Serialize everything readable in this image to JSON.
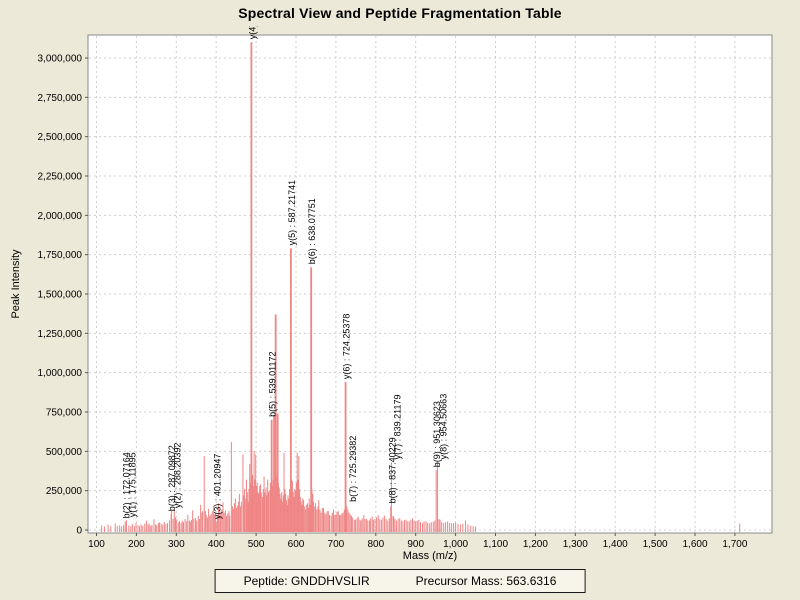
{
  "title": "Spectral View and Peptide Fragmentation Table",
  "footer": {
    "peptide": "Peptide: GNDDHVSLIR",
    "precursor": "Precursor Mass: 563.6316"
  },
  "colors": {
    "background": "#ece9d8",
    "plot_background": "#ffffff",
    "grid": "#cfcfcf",
    "frame": "#8a8a8a",
    "peak": "#ef8585",
    "text": "#000000"
  },
  "chart_data": {
    "type": "bar",
    "title": "Spectral View and Peptide Fragmentation Table",
    "xlabel": "Mass (m/z)",
    "ylabel": "Peak Intensity",
    "xlim": [
      80,
      1790
    ],
    "ylim": [
      0,
      3100000
    ],
    "grid": "dashed",
    "legend": "none",
    "x_ticks": [
      [
        100,
        "100"
      ],
      [
        200,
        "200"
      ],
      [
        300,
        "300"
      ],
      [
        400,
        "400"
      ],
      [
        500,
        "500"
      ],
      [
        600,
        "600"
      ],
      [
        700,
        "700"
      ],
      [
        800,
        "800"
      ],
      [
        900,
        "900"
      ],
      [
        1000,
        "1,000"
      ],
      [
        1100,
        "1,100"
      ],
      [
        1200,
        "1,200"
      ],
      [
        1300,
        "1,300"
      ],
      [
        1400,
        "1,400"
      ],
      [
        1500,
        "1,500"
      ],
      [
        1600,
        "1,600"
      ],
      [
        1700,
        "1,700"
      ]
    ],
    "y_ticks": [
      [
        0,
        "0"
      ],
      [
        250000,
        "250,000"
      ],
      [
        500000,
        "500,000"
      ],
      [
        750000,
        "750,000"
      ],
      [
        1000000,
        "1,000,000"
      ],
      [
        1250000,
        "1,250,000"
      ],
      [
        1500000,
        "1,500,000"
      ],
      [
        1750000,
        "1,750,000"
      ],
      [
        2000000,
        "2,000,000"
      ],
      [
        2250000,
        "2,250,000"
      ],
      [
        2500000,
        "2,500,000"
      ],
      [
        2750000,
        "2,750,000"
      ],
      [
        3000000,
        "3,000,000"
      ]
    ],
    "labeled_peaks": [
      {
        "text": "b(2) : 172.07164",
        "mz": 172.07,
        "value": 55000,
        "dx": 0
      },
      {
        "text": "y(1) : 175.11895",
        "mz": 175.12,
        "value": 62000,
        "dx": 5
      },
      {
        "text": "b(3) : 287.09872",
        "mz": 287.1,
        "value": 100000,
        "dx": 0
      },
      {
        "text": "y(2) : 288.20392",
        "mz": 288.2,
        "value": 120000,
        "dx": 5
      },
      {
        "text": "y(3) : 401.20947",
        "mz": 401.21,
        "value": 50000,
        "dx": 0
      },
      {
        "text": "y(4) :",
        "mz": 488.25,
        "value": 3100000,
        "dx": 0
      },
      {
        "text": "b(5) : 539.01172",
        "mz": 539.01,
        "value": 700000,
        "dx": 0
      },
      {
        "text": "y(5) : 587.21741",
        "mz": 587.22,
        "value": 1790000,
        "dx": 0
      },
      {
        "text": "b(6) : 638.07751",
        "mz": 638.08,
        "value": 1670000,
        "dx": 0
      },
      {
        "text": "y(6) : 724.25378",
        "mz": 724.25,
        "value": 940000,
        "dx": 0
      },
      {
        "text": "b(7) : 725.29382",
        "mz": 725.29,
        "value": 160000,
        "dx": 6
      },
      {
        "text": "b(8) : 837.40229",
        "mz": 837.4,
        "value": 150000,
        "dx": 1
      },
      {
        "text": "y(7) : 839.21179",
        "mz": 839.21,
        "value": 430000,
        "dx": 5
      },
      {
        "text": "b(9) : 951.30623",
        "mz": 951.31,
        "value": 380000,
        "dx": 0
      },
      {
        "text": "y(8) : 954.50663",
        "mz": 954.51,
        "value": 430000,
        "dx": 5
      }
    ],
    "peaks": [
      [
        113,
        28000
      ],
      [
        120,
        22000
      ],
      [
        129,
        35000
      ],
      [
        136,
        25000
      ],
      [
        147,
        42000
      ],
      [
        152,
        26000
      ],
      [
        158,
        30000
      ],
      [
        163,
        24000
      ],
      [
        168,
        32000
      ],
      [
        181,
        30000
      ],
      [
        186,
        24000
      ],
      [
        190,
        38000
      ],
      [
        195,
        26000
      ],
      [
        199,
        46000
      ],
      [
        204,
        30000
      ],
      [
        208,
        26000
      ],
      [
        212,
        34000
      ],
      [
        216,
        28000
      ],
      [
        221,
        40000
      ],
      [
        225,
        60000
      ],
      [
        229,
        34000
      ],
      [
        232,
        42000
      ],
      [
        236,
        28000
      ],
      [
        239,
        32000
      ],
      [
        244,
        68000
      ],
      [
        248,
        36000
      ],
      [
        251,
        30000
      ],
      [
        255,
        44000
      ],
      [
        258,
        48000
      ],
      [
        262,
        40000
      ],
      [
        266,
        34000
      ],
      [
        270,
        52000
      ],
      [
        274,
        38000
      ],
      [
        278,
        44000
      ],
      [
        283,
        60000
      ],
      [
        292,
        70000
      ],
      [
        295,
        130000
      ],
      [
        298,
        80000
      ],
      [
        301,
        68000
      ],
      [
        305,
        48000
      ],
      [
        308,
        56000
      ],
      [
        312,
        44000
      ],
      [
        315,
        60000
      ],
      [
        318,
        50000
      ],
      [
        322,
        70000
      ],
      [
        326,
        56000
      ],
      [
        329,
        95000
      ],
      [
        333,
        60000
      ],
      [
        335,
        52000
      ],
      [
        338,
        64000
      ],
      [
        341,
        125000
      ],
      [
        344,
        70000
      ],
      [
        348,
        76000
      ],
      [
        351,
        60000
      ],
      [
        355,
        90000
      ],
      [
        358,
        70000
      ],
      [
        361,
        160000
      ],
      [
        364,
        110000
      ],
      [
        366,
        120000
      ],
      [
        370,
        470000
      ],
      [
        373,
        120000
      ],
      [
        375,
        95000
      ],
      [
        378,
        80000
      ],
      [
        381,
        135000
      ],
      [
        384,
        90000
      ],
      [
        387,
        100000
      ],
      [
        390,
        120000
      ],
      [
        393,
        155000
      ],
      [
        396,
        100000
      ],
      [
        398,
        110000
      ],
      [
        403,
        90000
      ],
      [
        406,
        170000
      ],
      [
        409,
        120000
      ],
      [
        411,
        100000
      ],
      [
        414,
        130000
      ],
      [
        417,
        175000
      ],
      [
        420,
        110000
      ],
      [
        423,
        125000
      ],
      [
        426,
        90000
      ],
      [
        429,
        105000
      ],
      [
        432,
        120000
      ],
      [
        434,
        90000
      ],
      [
        438,
        560000
      ],
      [
        441,
        150000
      ],
      [
        443,
        135000
      ],
      [
        446,
        170000
      ],
      [
        448,
        200000
      ],
      [
        451,
        140000
      ],
      [
        453,
        155000
      ],
      [
        456,
        180000
      ],
      [
        458,
        230000
      ],
      [
        461,
        150000
      ],
      [
        463,
        180000
      ],
      [
        467,
        480000
      ],
      [
        469,
        220000
      ],
      [
        471,
        260000
      ],
      [
        474,
        200000
      ],
      [
        476,
        320000
      ],
      [
        478,
        240000
      ],
      [
        480,
        180000
      ],
      [
        482,
        260000
      ],
      [
        484,
        420000
      ],
      [
        486,
        300000
      ],
      [
        491,
        350000
      ],
      [
        493,
        280000
      ],
      [
        495,
        500000
      ],
      [
        497,
        320000
      ],
      [
        499,
        480000
      ],
      [
        501,
        280000
      ],
      [
        503,
        300000
      ],
      [
        505,
        240000
      ],
      [
        507,
        230000
      ],
      [
        509,
        280000
      ],
      [
        511,
        290000
      ],
      [
        513,
        240000
      ],
      [
        516,
        210000
      ],
      [
        518,
        260000
      ],
      [
        520,
        340000
      ],
      [
        522,
        240000
      ],
      [
        525,
        270000
      ],
      [
        527,
        220000
      ],
      [
        529,
        320000
      ],
      [
        531,
        240000
      ],
      [
        533,
        250000
      ],
      [
        536,
        300000
      ],
      [
        541,
        280000
      ],
      [
        543,
        320000
      ],
      [
        545,
        730000
      ],
      [
        549,
        1370000
      ],
      [
        551,
        340000
      ],
      [
        554,
        740000
      ],
      [
        556,
        300000
      ],
      [
        558,
        270000
      ],
      [
        560,
        230000
      ],
      [
        562,
        200000
      ],
      [
        564,
        240000
      ],
      [
        566,
        180000
      ],
      [
        568,
        220000
      ],
      [
        570,
        490000
      ],
      [
        572,
        260000
      ],
      [
        574,
        230000
      ],
      [
        576,
        190000
      ],
      [
        578,
        160000
      ],
      [
        580,
        220000
      ],
      [
        582,
        200000
      ],
      [
        584,
        260000
      ],
      [
        589,
        320000
      ],
      [
        591,
        310000
      ],
      [
        593,
        240000
      ],
      [
        595,
        210000
      ],
      [
        597,
        260000
      ],
      [
        599,
        250000
      ],
      [
        601,
        300000
      ],
      [
        603,
        490000
      ],
      [
        605,
        320000
      ],
      [
        607,
        470000
      ],
      [
        609,
        260000
      ],
      [
        611,
        210000
      ],
      [
        613,
        180000
      ],
      [
        615,
        160000
      ],
      [
        617,
        200000
      ],
      [
        619,
        190000
      ],
      [
        621,
        150000
      ],
      [
        624,
        130000
      ],
      [
        626,
        160000
      ],
      [
        629,
        170000
      ],
      [
        631,
        140000
      ],
      [
        633,
        200000
      ],
      [
        635,
        160000
      ],
      [
        640,
        260000
      ],
      [
        642,
        230000
      ],
      [
        644,
        180000
      ],
      [
        647,
        150000
      ],
      [
        649,
        170000
      ],
      [
        652,
        130000
      ],
      [
        655,
        150000
      ],
      [
        657,
        190000
      ],
      [
        660,
        130000
      ],
      [
        663,
        110000
      ],
      [
        666,
        140000
      ],
      [
        669,
        140000
      ],
      [
        672,
        110000
      ],
      [
        675,
        100000
      ],
      [
        678,
        120000
      ],
      [
        681,
        120000
      ],
      [
        684,
        95000
      ],
      [
        688,
        90000
      ],
      [
        691,
        110000
      ],
      [
        694,
        130000
      ],
      [
        697,
        95000
      ],
      [
        700,
        100000
      ],
      [
        703,
        115000
      ],
      [
        706,
        120000
      ],
      [
        709,
        95000
      ],
      [
        712,
        95000
      ],
      [
        715,
        105000
      ],
      [
        718,
        110000
      ],
      [
        721,
        130000
      ],
      [
        727,
        150000
      ],
      [
        730,
        130000
      ],
      [
        733,
        110000
      ],
      [
        736,
        100000
      ],
      [
        739,
        90000
      ],
      [
        742,
        80000
      ],
      [
        746,
        65000
      ],
      [
        749,
        65000
      ],
      [
        753,
        75000
      ],
      [
        756,
        85000
      ],
      [
        760,
        65000
      ],
      [
        763,
        60000
      ],
      [
        766,
        75000
      ],
      [
        770,
        95000
      ],
      [
        773,
        70000
      ],
      [
        777,
        70000
      ],
      [
        780,
        60000
      ],
      [
        784,
        60000
      ],
      [
        787,
        75000
      ],
      [
        791,
        85000
      ],
      [
        794,
        65000
      ],
      [
        798,
        70000
      ],
      [
        802,
        80000
      ],
      [
        806,
        95000
      ],
      [
        810,
        70000
      ],
      [
        814,
        65000
      ],
      [
        818,
        80000
      ],
      [
        822,
        90000
      ],
      [
        826,
        70000
      ],
      [
        830,
        60000
      ],
      [
        834,
        75000
      ],
      [
        843,
        90000
      ],
      [
        845,
        85000
      ],
      [
        848,
        70000
      ],
      [
        852,
        60000
      ],
      [
        856,
        70000
      ],
      [
        860,
        75000
      ],
      [
        864,
        60000
      ],
      [
        868,
        55000
      ],
      [
        872,
        65000
      ],
      [
        876,
        65000
      ],
      [
        880,
        55000
      ],
      [
        884,
        55000
      ],
      [
        888,
        65000
      ],
      [
        892,
        75000
      ],
      [
        896,
        60000
      ],
      [
        900,
        55000
      ],
      [
        904,
        60000
      ],
      [
        908,
        65000
      ],
      [
        912,
        50000
      ],
      [
        917,
        45000
      ],
      [
        921,
        55000
      ],
      [
        926,
        55000
      ],
      [
        930,
        45000
      ],
      [
        935,
        42000
      ],
      [
        939,
        50000
      ],
      [
        944,
        52000
      ],
      [
        948,
        60000
      ],
      [
        958,
        70000
      ],
      [
        961,
        65000
      ],
      [
        965,
        50000
      ],
      [
        970,
        45000
      ],
      [
        975,
        50000
      ],
      [
        980,
        55000
      ],
      [
        985,
        45000
      ],
      [
        990,
        42000
      ],
      [
        995,
        45000
      ],
      [
        1000,
        48000
      ],
      [
        1006,
        38000
      ],
      [
        1012,
        35000
      ],
      [
        1018,
        40000
      ],
      [
        1025,
        60000
      ],
      [
        1031,
        35000
      ],
      [
        1038,
        28000
      ],
      [
        1044,
        25000
      ],
      [
        1050,
        22000
      ],
      [
        1712,
        40000
      ]
    ]
  }
}
